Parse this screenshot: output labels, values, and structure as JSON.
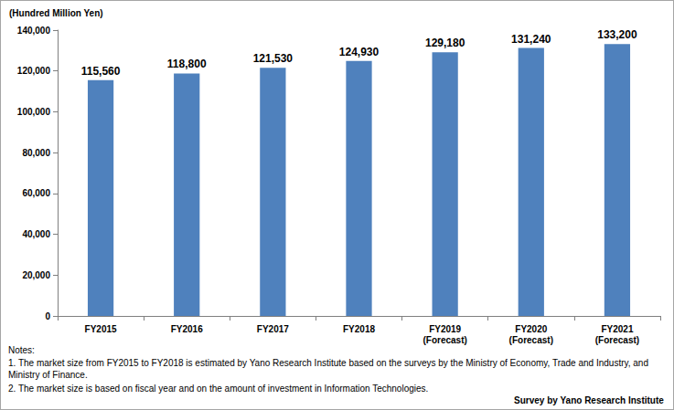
{
  "chart_data": {
    "type": "bar",
    "ylabel": "(Hundred Million Yen)",
    "categories": [
      "FY2015",
      "FY2016",
      "FY2017",
      "FY2018",
      "FY2019\n(Forecast)",
      "FY2020\n(Forecast)",
      "FY2021\n(Forecast)"
    ],
    "values": [
      115560,
      118800,
      121530,
      124930,
      129180,
      131240,
      133200
    ],
    "value_labels": [
      "115,560",
      "118,800",
      "121,530",
      "124,930",
      "129,180",
      "131,240",
      "133,200"
    ],
    "data_labels": true,
    "color": "#4f81bd",
    "ylim": [
      0,
      140000
    ],
    "yticks": [
      0,
      {
        "value": 20000,
        "label": "20,000"
      },
      {
        "value": 40000,
        "label": "40,000"
      },
      {
        "value": 60000,
        "label": "60,000"
      },
      {
        "value": 80000,
        "label": "80,000"
      },
      {
        "value": 100000,
        "label": "100,000"
      },
      {
        "value": 120000,
        "label": "120,000"
      },
      {
        "value": 140000,
        "label": "140,000"
      }
    ],
    "grid": false,
    "notes": [
      "Notes:",
      "1. The market size from FY2015 to FY2018 is estimated by Yano Research Institute based on the surveys by the Ministry of Economy, Trade and Industry, and Ministry of Finance.",
      "2. The market size is based on fiscal year and on the amount of investment in Information Technologies."
    ],
    "source": "Survey by Yano Research Institute"
  }
}
